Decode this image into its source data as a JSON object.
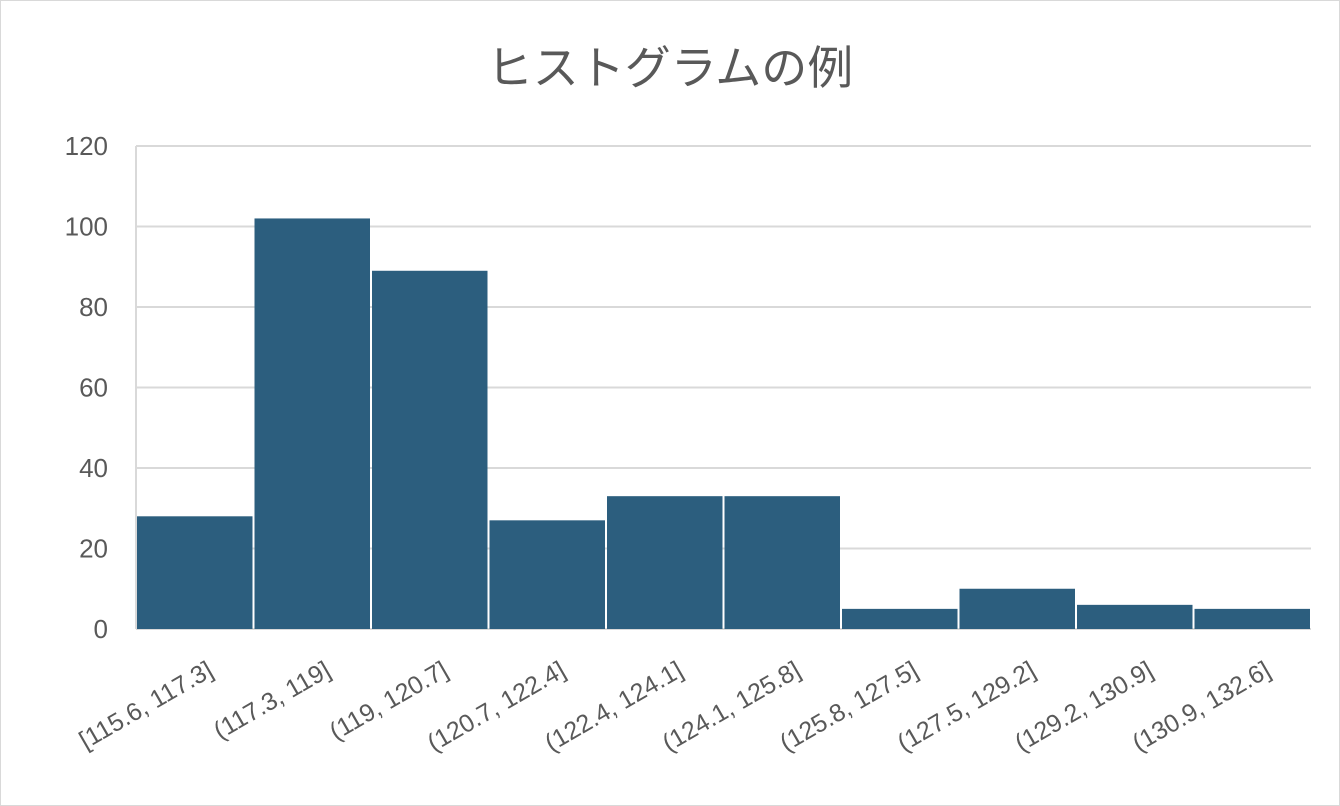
{
  "chart_data": {
    "type": "bar",
    "title": "ヒストグラムの例",
    "xlabel": "",
    "ylabel": "",
    "categories": [
      "[115.6, 117.3]",
      "(117.3, 119]",
      "(119, 120.7]",
      "(120.7, 122.4]",
      "(122.4, 124.1]",
      "(124.1, 125.8]",
      "(125.8, 127.5]",
      "(127.5, 129.2]",
      "(129.2, 130.9]",
      "(130.9, 132.6]"
    ],
    "values": [
      28,
      102,
      89,
      27,
      33,
      33,
      5,
      10,
      6,
      5
    ],
    "ylim": [
      0,
      120
    ],
    "yticks": [
      "0",
      "20",
      "40",
      "60",
      "80",
      "100",
      "120"
    ],
    "grid": true,
    "legend": "none",
    "colors": {
      "bar": "#2c5e7e",
      "grid": "#d9d9d9",
      "text": "#595959"
    }
  }
}
